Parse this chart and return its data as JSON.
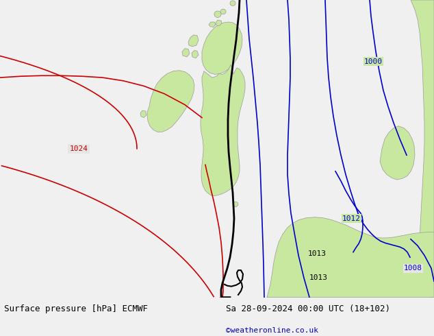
{
  "title_left": "Surface pressure [hPa] ECMWF",
  "title_right": "Sa 28-09-2024 00:00 UTC (18+102)",
  "credit": "©weatheronline.co.uk",
  "bg_sea": "#e6e6e6",
  "bg_land": "#c8e8a0",
  "land_edge": "#999999",
  "red": "#cc0000",
  "blue": "#0000cc",
  "black": "#000000",
  "white": "#ffffff",
  "credit_color": "#0000bb",
  "bottom_bar": "#f0f0f0"
}
